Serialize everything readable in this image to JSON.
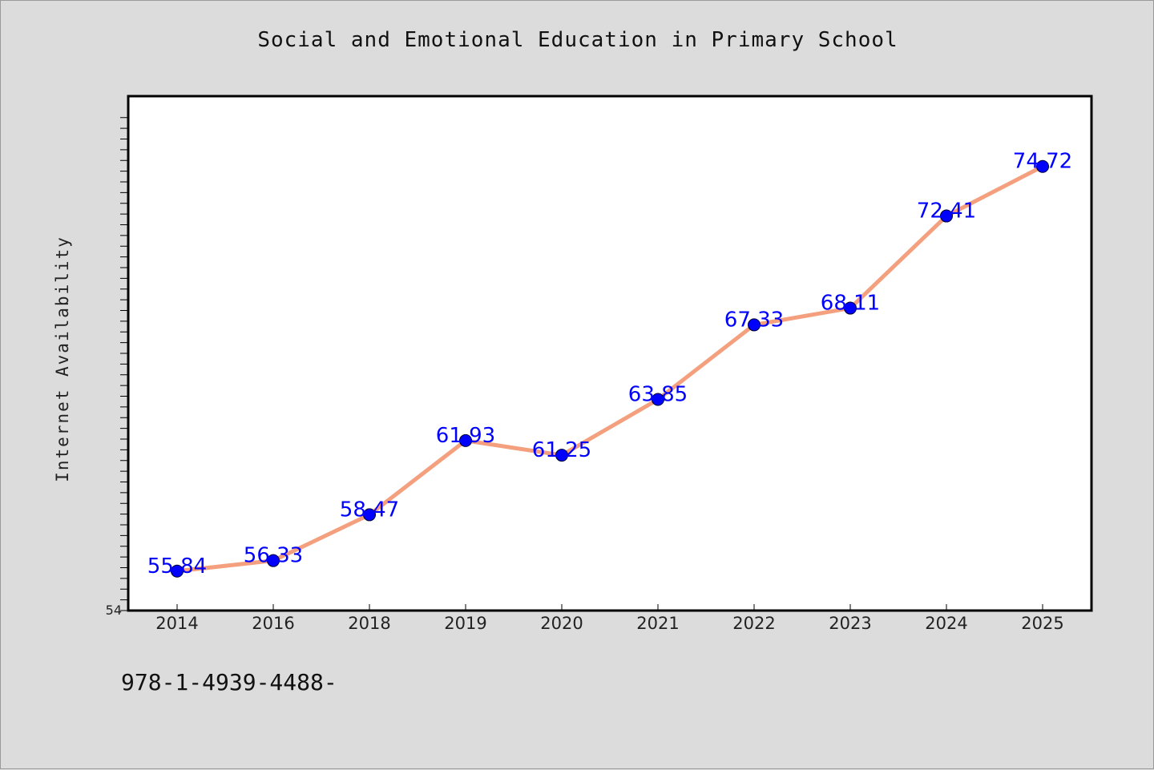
{
  "colors": {
    "background": "#dcdcdc",
    "plot_background": "#ffffff",
    "line": "#f4a07e",
    "marker": "#0000ff",
    "label": "#0000ff",
    "axis": "#000000"
  },
  "footer_text": "978-1-4939-4488-",
  "chart_data": {
    "type": "line",
    "title": "Social and Emotional Education in Primary School",
    "xlabel": "",
    "ylabel": "Internet Availability",
    "categories": [
      "2014",
      "2016",
      "2018",
      "2019",
      "2020",
      "2021",
      "2022",
      "2023",
      "2024",
      "2025"
    ],
    "series": [
      {
        "values": [
          55.84,
          56.33,
          58.47,
          61.93,
          61.25,
          63.85,
          67.33,
          68.11,
          72.41,
          74.72
        ]
      }
    ],
    "ylim": [
      54,
      78
    ],
    "y_tick_label": "54",
    "grid": false,
    "legend": "none",
    "markers": "filled circles",
    "data_labels": true
  }
}
